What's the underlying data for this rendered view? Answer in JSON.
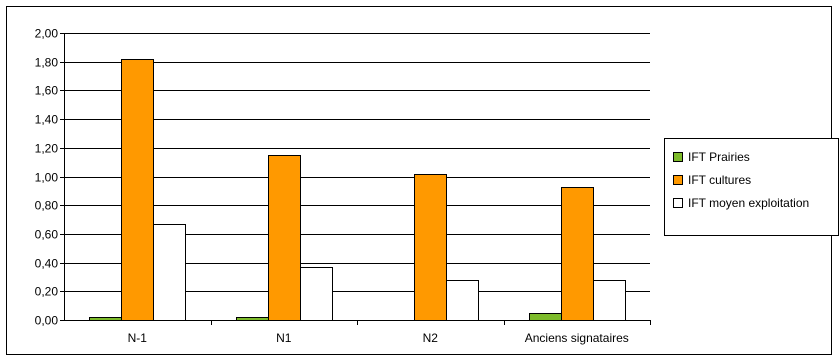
{
  "chart_data": {
    "type": "bar",
    "categories": [
      "N-1",
      "N1",
      "N2",
      "Anciens signataires"
    ],
    "series": [
      {
        "name": "IFT Prairies",
        "color": "#7DBB2A",
        "values": [
          0.02,
          0.02,
          0.0,
          0.05
        ]
      },
      {
        "name": "IFT  cultures",
        "color": "#FF9900",
        "values": [
          1.82,
          1.15,
          1.02,
          0.93
        ]
      },
      {
        "name": "IFT  moyen exploitation",
        "color": "#FFFFFF",
        "values": [
          0.67,
          0.37,
          0.28,
          0.28
        ]
      }
    ],
    "ylim": [
      0,
      2
    ],
    "yticks": [
      "0,00",
      "0,20",
      "0,40",
      "0,60",
      "0,80",
      "1,00",
      "1,20",
      "1,40",
      "1,60",
      "1,80",
      "2,00"
    ],
    "grid": true,
    "legend_position": "right",
    "title": "",
    "xlabel": "",
    "ylabel": ""
  }
}
